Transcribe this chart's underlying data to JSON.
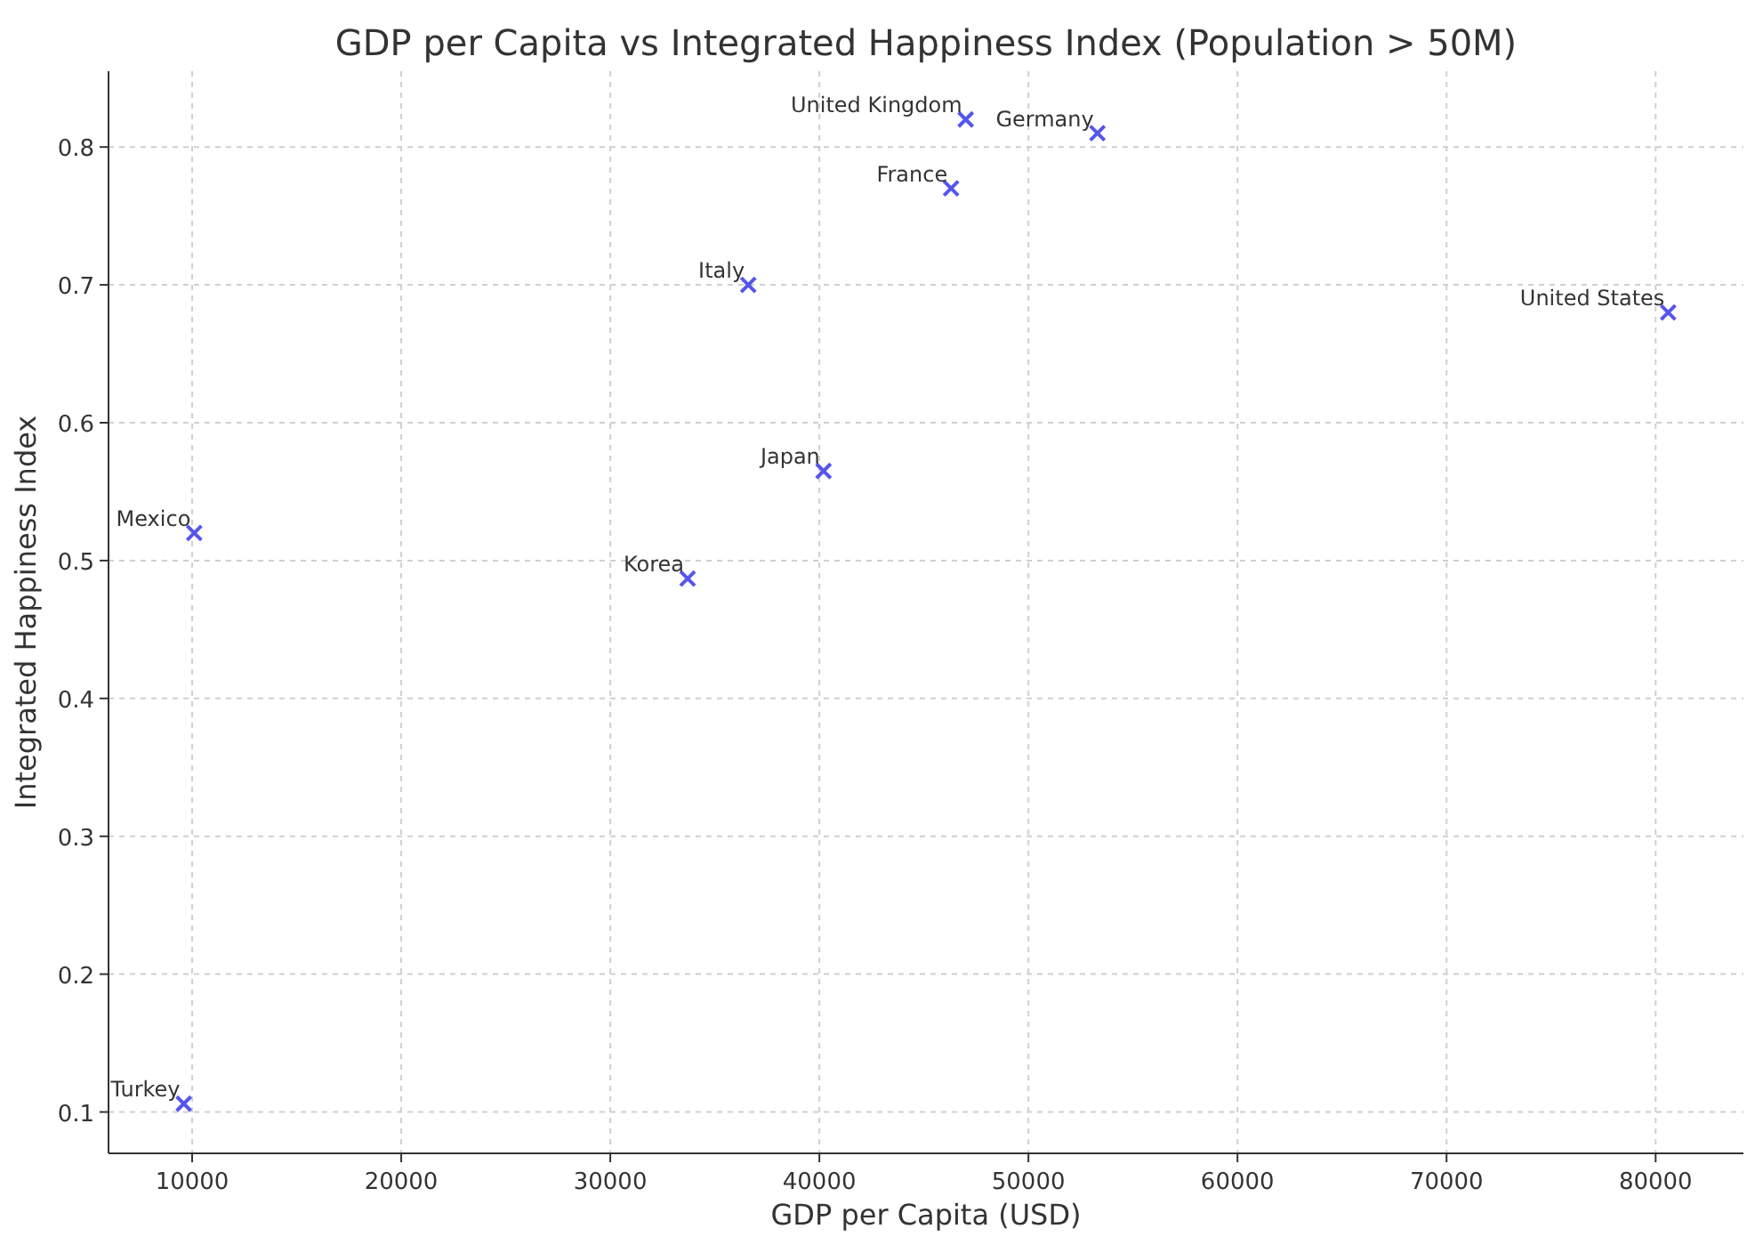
{
  "chart_data": {
    "type": "scatter",
    "title": "GDP per Capita vs Integrated Happiness Index (Population > 50M)",
    "xlabel": "GDP per Capita (USD)",
    "ylabel": "Integrated Happiness Index",
    "x": [
      47000,
      53300,
      46300,
      36600,
      80600,
      40200,
      10100,
      33700,
      9600
    ],
    "series": [
      {
        "color": "#5555ee",
        "values": [
          0.82,
          0.81,
          0.77,
          0.7,
          0.68,
          0.565,
          0.52,
          0.487,
          0.106
        ]
      }
    ],
    "annotations": [
      {
        "text": "United Kingdom",
        "x": 47000,
        "y": 0.82
      },
      {
        "text": "Germany",
        "x": 53300,
        "y": 0.81
      },
      {
        "text": "France",
        "x": 46300,
        "y": 0.77
      },
      {
        "text": "Italy",
        "x": 36600,
        "y": 0.7
      },
      {
        "text": "United States",
        "x": 80600,
        "y": 0.68
      },
      {
        "text": "Japan",
        "x": 40200,
        "y": 0.565
      },
      {
        "text": "Mexico",
        "x": 10100,
        "y": 0.52
      },
      {
        "text": "Korea",
        "x": 33700,
        "y": 0.487
      },
      {
        "text": "Turkey",
        "x": 9600,
        "y": 0.106
      }
    ],
    "xlim": [
      6000,
      84200
    ],
    "ylim": [
      0.07,
      0.855
    ],
    "xticks": [
      10000,
      20000,
      30000,
      40000,
      50000,
      60000,
      70000,
      80000
    ],
    "yticks": [
      0.1,
      0.2,
      0.3,
      0.4,
      0.5,
      0.6,
      0.7,
      0.8
    ],
    "grid": true,
    "marker": "cross"
  }
}
